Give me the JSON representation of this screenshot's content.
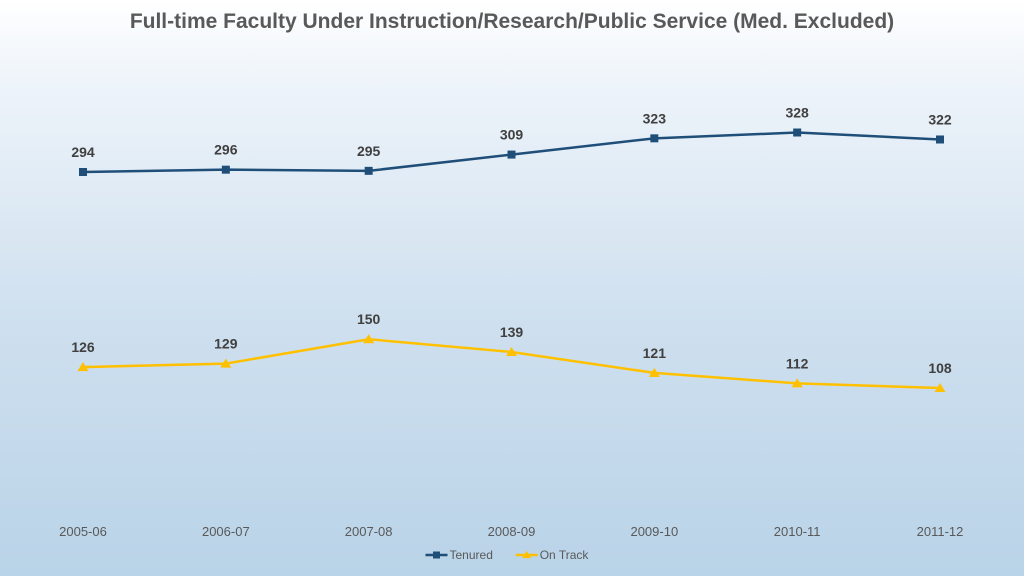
{
  "chart_data": {
    "type": "line",
    "title": "Full-time Faculty Under Instruction/Research/Public Service (Med. Excluded)",
    "xlabel": "",
    "ylabel": "",
    "ylim": [
      90,
      340
    ],
    "grid": false,
    "legend_position": "bottom",
    "categories": [
      "2005-06",
      "2006-07",
      "2007-08",
      "2008-09",
      "2009-10",
      "2010-11",
      "2011-12"
    ],
    "series": [
      {
        "name": "Tenured",
        "color": "#1f4e79",
        "marker": "square",
        "values": [
          294,
          296,
          295,
          309,
          323,
          328,
          322
        ]
      },
      {
        "name": "On Track",
        "color": "#ffc000",
        "marker": "triangle",
        "values": [
          126,
          129,
          150,
          139,
          121,
          112,
          108
        ]
      }
    ]
  }
}
